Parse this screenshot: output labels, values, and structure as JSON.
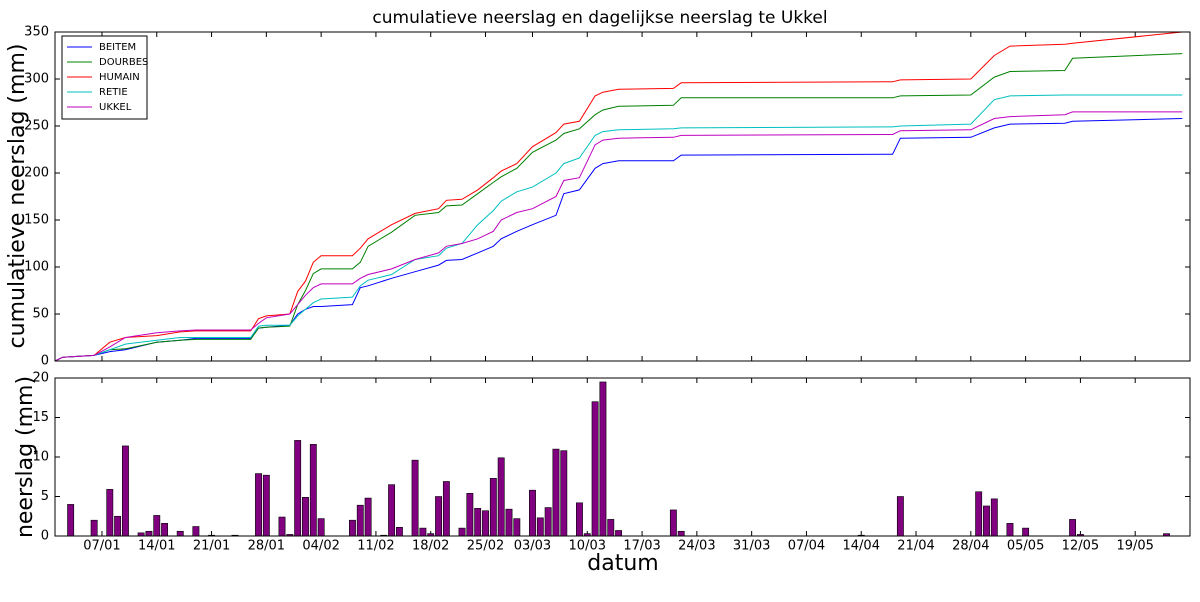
{
  "chart_data": [
    {
      "type": "line",
      "title": "cumulatieve neerslag en dagelijkse neerslag te Ukkel",
      "y_label": "cumulatieve neerslag (mm)",
      "x": [
        "01/01",
        "02/01",
        "06/01",
        "08/01",
        "10/01",
        "14/01",
        "17/01",
        "19/01",
        "26/01",
        "27/01",
        "28/01",
        "31/01",
        "01/02",
        "02/02",
        "03/02",
        "04/02",
        "08/02",
        "09/02",
        "10/02",
        "13/02",
        "16/02",
        "19/02",
        "20/02",
        "22/02",
        "24/02",
        "26/02",
        "27/02",
        "01/03",
        "03/03",
        "06/03",
        "07/03",
        "09/03",
        "11/03",
        "12/03",
        "14/03",
        "21/03",
        "22/03",
        "18/04",
        "19/04",
        "28/04",
        "01/05",
        "03/05",
        "10/05",
        "11/05",
        "25/05"
      ],
      "series": [
        {
          "name": "BEITEM",
          "color": "#0000ff",
          "values": [
            0,
            4,
            6,
            10,
            12,
            20,
            22,
            24,
            24,
            35,
            36,
            38,
            50,
            55,
            58,
            58,
            60,
            78,
            80,
            88,
            95,
            102,
            107,
            108,
            115,
            122,
            130,
            138,
            145,
            155,
            178,
            182,
            205,
            210,
            213,
            213,
            219,
            220,
            237,
            238,
            248,
            252,
            253,
            255,
            258
          ]
        },
        {
          "name": "DOURBES",
          "color": "#008000",
          "values": [
            0,
            4,
            6,
            12,
            13,
            20,
            22,
            23,
            23,
            35,
            36,
            37,
            60,
            75,
            93,
            98,
            98,
            105,
            122,
            137,
            155,
            158,
            165,
            166,
            178,
            190,
            196,
            205,
            222,
            235,
            242,
            247,
            262,
            267,
            271,
            272,
            280,
            280,
            282,
            283,
            302,
            308,
            309,
            322,
            327
          ]
        },
        {
          "name": "HUMAIN",
          "color": "#ff0000",
          "values": [
            0,
            4,
            6,
            20,
            25,
            27,
            31,
            32,
            32,
            45,
            48,
            50,
            74,
            85,
            105,
            112,
            112,
            120,
            130,
            145,
            157,
            162,
            171,
            172,
            182,
            195,
            202,
            210,
            228,
            243,
            252,
            255,
            282,
            286,
            289,
            290,
            296,
            297,
            299,
            300,
            325,
            335,
            337,
            338,
            350
          ]
        },
        {
          "name": "RETIE",
          "color": "#00bfbf",
          "values": [
            0,
            4,
            6,
            12,
            18,
            22,
            25,
            25,
            25,
            37,
            38,
            38,
            48,
            55,
            62,
            66,
            68,
            80,
            86,
            92,
            108,
            112,
            120,
            125,
            145,
            160,
            170,
            180,
            185,
            200,
            210,
            216,
            240,
            244,
            246,
            247,
            248,
            249,
            250,
            252,
            278,
            282,
            283,
            283,
            283
          ]
        },
        {
          "name": "UKKEL",
          "color": "#bf00bf",
          "values": [
            0,
            4,
            6,
            15,
            25,
            30,
            32,
            33,
            33,
            40,
            46,
            50,
            60,
            70,
            78,
            82,
            82,
            88,
            92,
            98,
            108,
            115,
            122,
            125,
            130,
            138,
            150,
            158,
            162,
            175,
            192,
            195,
            230,
            235,
            237,
            238,
            240,
            241,
            245,
            246,
            258,
            260,
            262,
            265,
            265
          ]
        }
      ],
      "xlim": [
        "01/01",
        "26/05"
      ],
      "ylim": [
        0,
        350
      ],
      "yticks": [
        0,
        50,
        100,
        150,
        200,
        250,
        300,
        350
      ],
      "legend": "upper left"
    },
    {
      "type": "bar",
      "y_label": "neerslag (mm)",
      "x_label": "datum",
      "x": [
        "03/01",
        "06/01",
        "08/01",
        "09/01",
        "10/01",
        "12/01",
        "13/01",
        "14/01",
        "15/01",
        "17/01",
        "19/01",
        "21/01",
        "24/01",
        "27/01",
        "28/01",
        "30/01",
        "31/01",
        "01/02",
        "02/02",
        "03/02",
        "04/02",
        "08/02",
        "09/02",
        "10/02",
        "12/02",
        "13/02",
        "14/02",
        "16/02",
        "17/02",
        "18/02",
        "19/02",
        "20/02",
        "22/02",
        "23/02",
        "24/02",
        "25/02",
        "26/02",
        "27/02",
        "28/02",
        "01/03",
        "03/03",
        "04/03",
        "05/03",
        "06/03",
        "07/03",
        "09/03",
        "10/03",
        "11/03",
        "12/03",
        "13/03",
        "14/03",
        "21/03",
        "22/03",
        "14/04",
        "19/04",
        "29/04",
        "30/04",
        "01/05",
        "03/05",
        "05/05",
        "11/05",
        "12/05",
        "23/05"
      ],
      "values": [
        4.0,
        2.0,
        5.9,
        2.5,
        11.4,
        0.4,
        0.6,
        2.6,
        1.6,
        0.6,
        1.2,
        0.1,
        0.1,
        7.9,
        7.7,
        2.4,
        0.2,
        12.1,
        4.9,
        11.6,
        2.2,
        2.0,
        3.9,
        4.8,
        0.1,
        6.5,
        1.1,
        9.6,
        1.0,
        0.3,
        5.0,
        6.9,
        1.0,
        5.4,
        3.5,
        3.2,
        7.3,
        9.9,
        3.4,
        2.2,
        5.8,
        2.3,
        3.6,
        11.0,
        10.8,
        4.2,
        0.3,
        17.0,
        19.5,
        2.1,
        0.7,
        3.3,
        0.6,
        0.1,
        5.0,
        5.6,
        3.8,
        4.7,
        1.6,
        1.0,
        2.1,
        0.2,
        0.3
      ],
      "color": "#800080",
      "xlim": [
        "01/01",
        "26/05"
      ],
      "xticks": [
        "07/01",
        "14/01",
        "21/01",
        "28/01",
        "04/02",
        "11/02",
        "18/02",
        "25/02",
        "03/03",
        "10/03",
        "17/03",
        "24/03",
        "31/03",
        "07/04",
        "14/04",
        "21/04",
        "28/04",
        "05/05",
        "12/05",
        "19/05"
      ],
      "ylim": [
        0,
        20
      ],
      "yticks": [
        0,
        5,
        10,
        15,
        20
      ]
    }
  ]
}
